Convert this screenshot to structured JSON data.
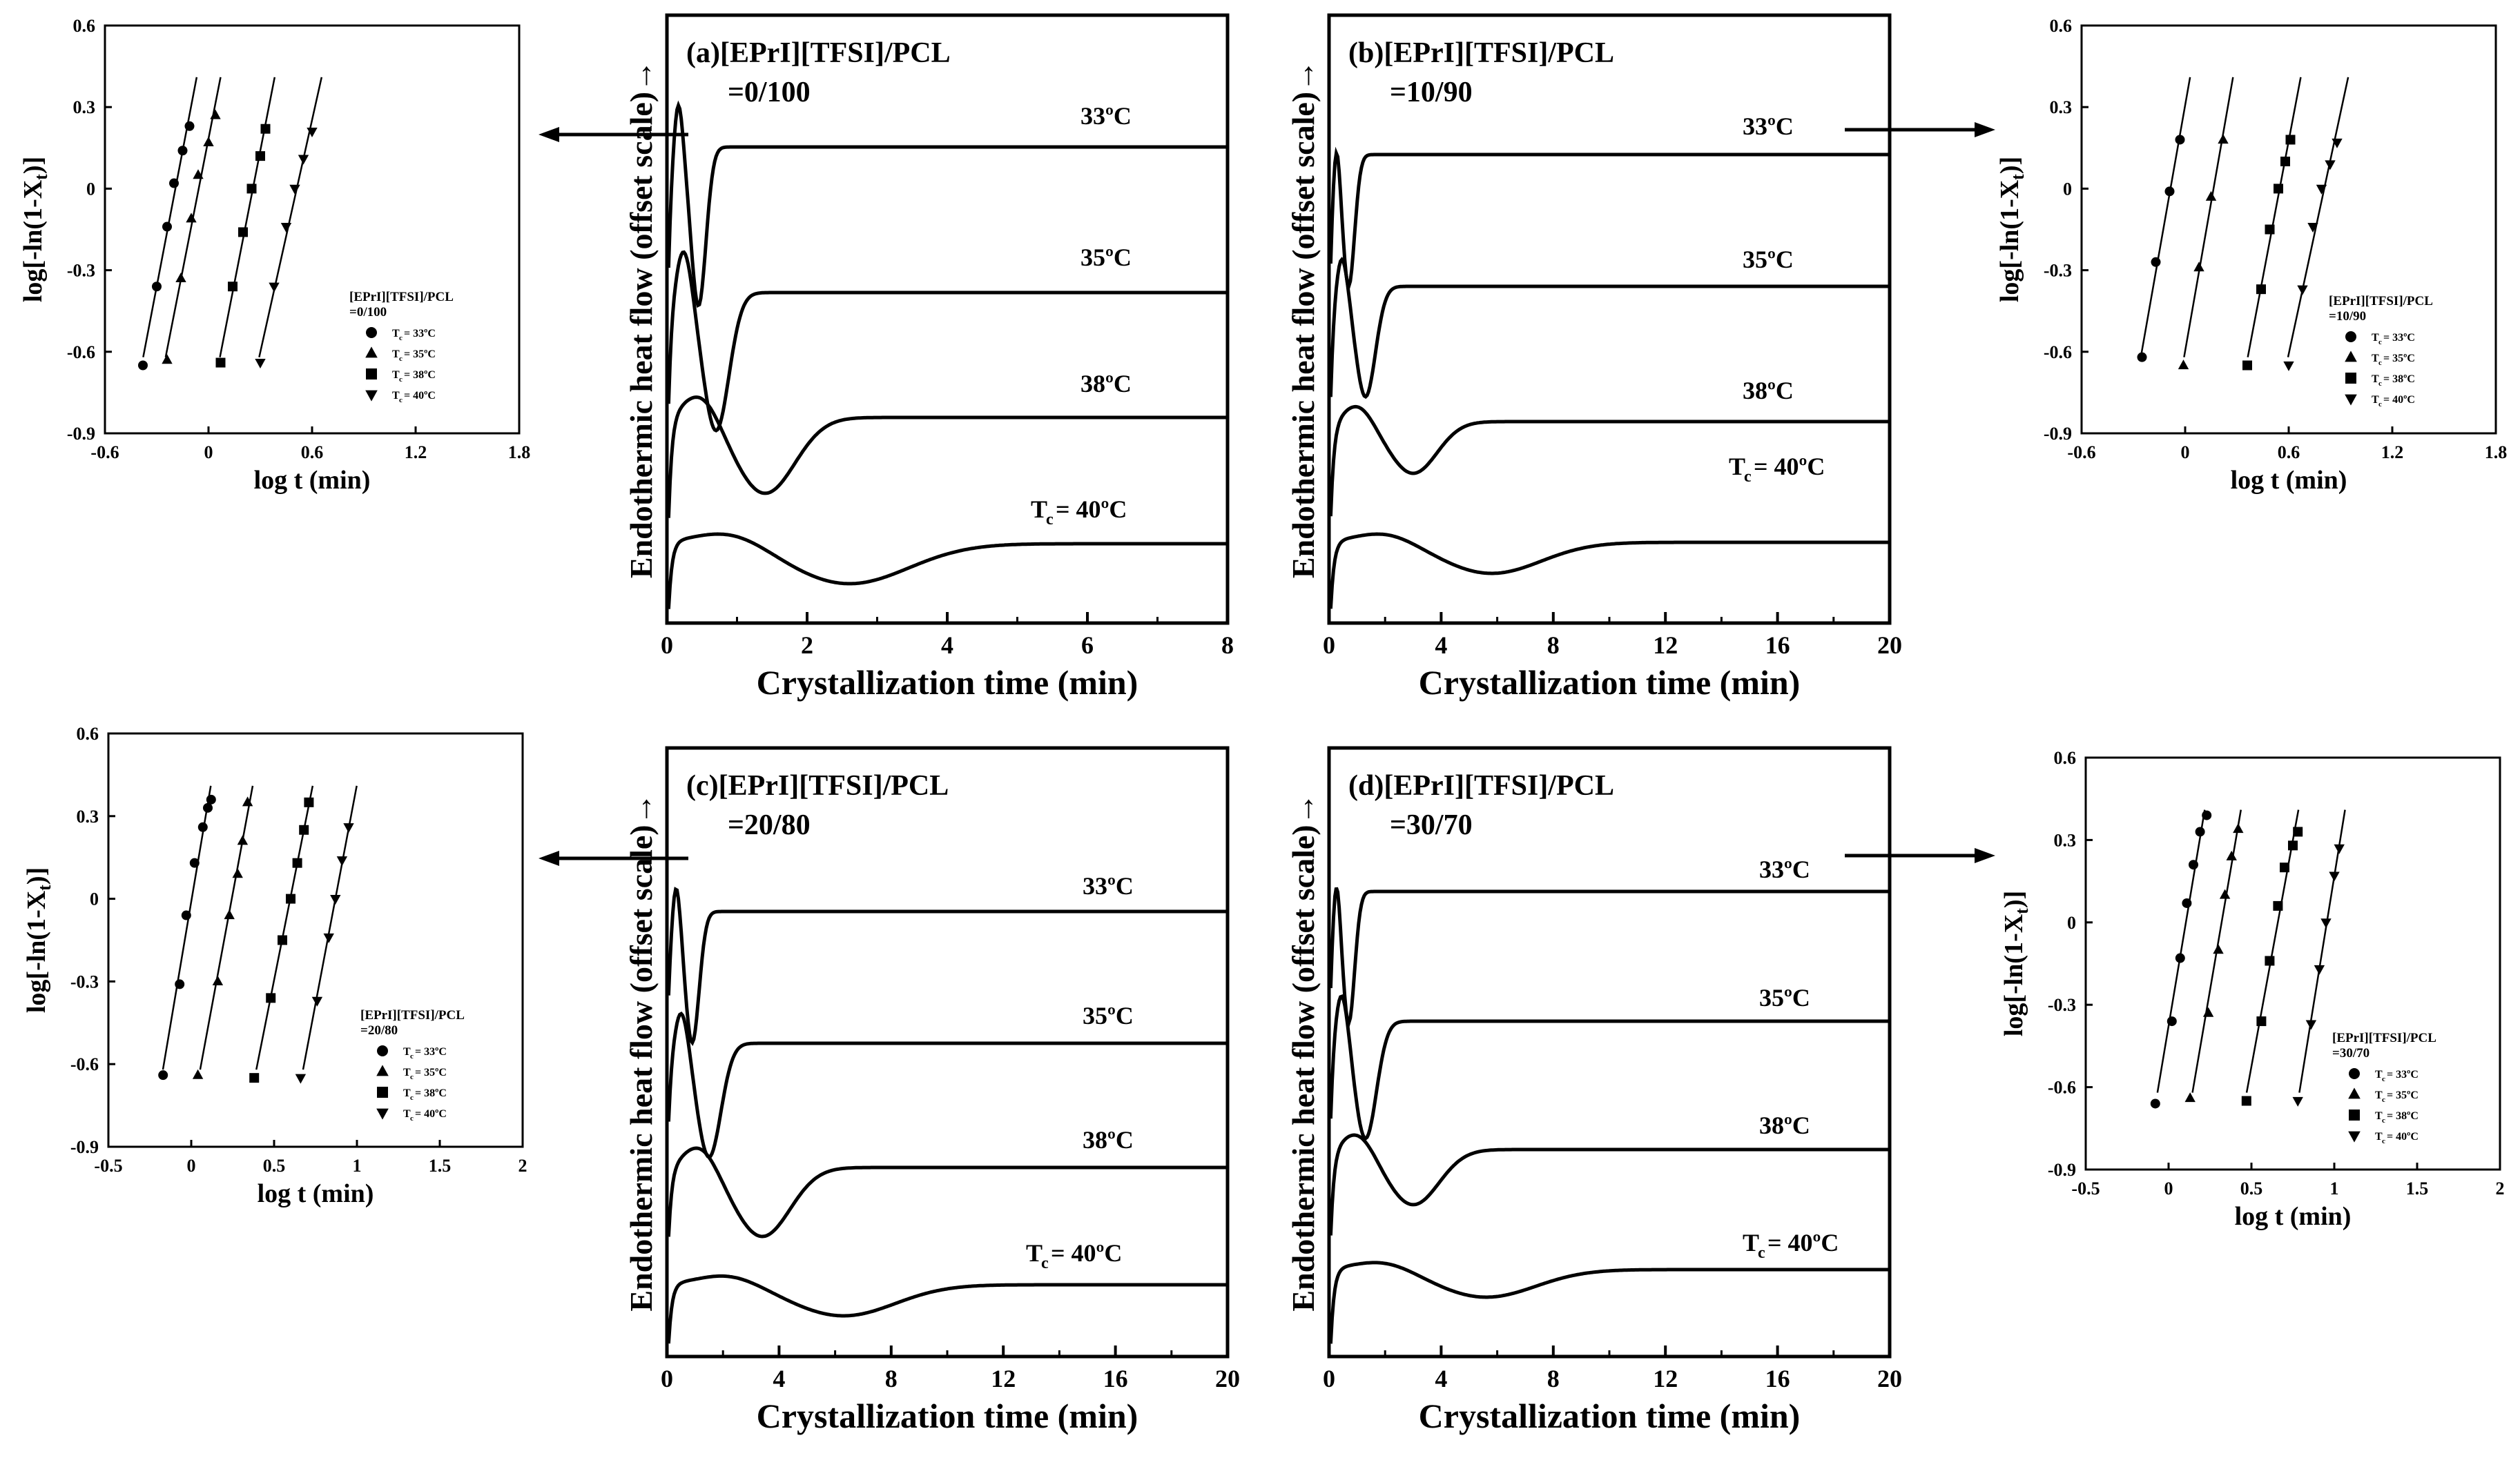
{
  "figure": {
    "panels": {
      "a": {
        "title_line1": "(a)[EPrI][TFSI]/PCL",
        "title_line2": "=0/100",
        "ylabel": "Endothermic heat flow (offset scale)→",
        "xlabel": "Crystallization time (min)"
      },
      "b": {
        "title_line1": "(b)[EPrI][TFSI]/PCL",
        "title_line2": "=10/90",
        "ylabel": "Endothermic heat flow (offset scale)→",
        "xlabel": "Crystallization time (min)"
      },
      "c": {
        "title_line1": "(c)[EPrI][TFSI]/PCL",
        "title_line2": "=20/80",
        "ylabel": "Endothermic heat flow (offset scale)→",
        "xlabel": "Crystallization time (min)"
      },
      "d": {
        "title_line1": "(d)[EPrI][TFSI]/PCL",
        "title_line2": "=30/70",
        "ylabel": "Endothermic heat flow (offset scale)→",
        "xlabel": "Crystallization time (min)"
      }
    },
    "insets": {
      "a": {
        "ylabel": "log[-ln(1-X",
        "ylabel_sub": "t",
        "ylabel_end": ")]",
        "xlabel": "log t (min)",
        "legend_title": "[EPrI][TFSI]/PCL",
        "legend_ratio": "=0/100"
      },
      "b": {
        "ylabel": "log[-ln(1-X",
        "ylabel_sub": "t",
        "ylabel_end": ")]",
        "xlabel": "log t (min)",
        "legend_title": "[EPrI][TFSI]/PCL",
        "legend_ratio": "=10/90"
      },
      "c": {
        "ylabel": "log[-ln(1-X",
        "ylabel_sub": "t",
        "ylabel_end": ")]",
        "xlabel": "log t (min)",
        "legend_title": "[EPrI][TFSI]/PCL",
        "legend_ratio": "=20/80"
      },
      "d": {
        "ylabel": "log[-ln(1-X",
        "ylabel_sub": "t",
        "ylabel_end": ")]",
        "xlabel": "log t (min)",
        "legend_title": "[EPrI][TFSI]/PCL",
        "legend_ratio": "=30/70"
      }
    },
    "tc_labels": [
      "33ºC",
      "35ºC",
      "38ºC",
      "T",
      "c",
      " = 40ºC"
    ],
    "legend_entries": [
      "T",
      "c",
      " = 33ºC",
      " = 35ºC",
      " = 38ºC",
      " = 40ºC"
    ],
    "colors": {
      "line": "#000000",
      "background": "#ffffff"
    }
  },
  "chart_data": [
    {
      "id": "a",
      "type": "line",
      "title": "(a)[EPrI][TFSI]/PCL =0/100",
      "xlabel": "Crystallization time (min)",
      "ylabel": "Endothermic heat flow (offset scale)→",
      "xlim": [
        0,
        8
      ],
      "xticks": [
        0,
        2,
        4,
        6,
        8
      ],
      "series": [
        {
          "name": "33ºC",
          "label": "33ºC",
          "peak_time": 0.45,
          "peak_depth": 0.62,
          "peak_width": 0.15
        },
        {
          "name": "35ºC",
          "label": "35ºC",
          "peak_time": 0.7,
          "peak_depth": 0.55,
          "peak_width": 0.26
        },
        {
          "name": "38ºC",
          "label": "38ºC",
          "peak_time": 1.4,
          "peak_depth": 0.35,
          "peak_width": 0.6
        },
        {
          "name": "40ºC",
          "label": "T_c = 40ºC",
          "peak_time": 2.6,
          "peak_depth": 0.17,
          "peak_width": 1.2
        }
      ]
    },
    {
      "id": "b",
      "type": "line",
      "title": "(b)[EPrI][TFSI]/PCL =10/90",
      "xlabel": "Crystallization time (min)",
      "ylabel": "Endothermic heat flow (offset scale)→",
      "xlim": [
        0,
        20
      ],
      "xticks": [
        0,
        4,
        8,
        12,
        16,
        20
      ],
      "series": [
        {
          "name": "33ºC",
          "label": "33ºC",
          "peak_time": 0.7,
          "peak_depth": 0.6,
          "peak_width": 0.3
        },
        {
          "name": "35ºC",
          "label": "35ºC",
          "peak_time": 1.3,
          "peak_depth": 0.5,
          "peak_width": 0.5
        },
        {
          "name": "38ºC",
          "label": "38ºC",
          "peak_time": 3.0,
          "peak_depth": 0.3,
          "peak_width": 1.2
        },
        {
          "name": "40ºC",
          "label": "T_c = 40ºC",
          "peak_time": 5.8,
          "peak_depth": 0.16,
          "peak_width": 2.5
        }
      ]
    },
    {
      "id": "c",
      "type": "line",
      "title": "(c)[EPrI][TFSI]/PCL =20/80",
      "xlabel": "Crystallization time (min)",
      "ylabel": "Endothermic heat flow (offset scale)→",
      "xlim": [
        0,
        20
      ],
      "xticks": [
        0,
        4,
        8,
        12,
        16,
        20
      ],
      "series": [
        {
          "name": "33ºC",
          "label": "33ºC",
          "peak_time": 0.9,
          "peak_depth": 0.6,
          "peak_width": 0.35
        },
        {
          "name": "35ºC",
          "label": "35ºC",
          "peak_time": 1.5,
          "peak_depth": 0.5,
          "peak_width": 0.6
        },
        {
          "name": "38ºC",
          "label": "38ºC",
          "peak_time": 3.4,
          "peak_depth": 0.3,
          "peak_width": 1.4
        },
        {
          "name": "40ºC",
          "label": "T_c = 40ºC",
          "peak_time": 6.3,
          "peak_depth": 0.16,
          "peak_width": 2.6
        }
      ]
    },
    {
      "id": "d",
      "type": "line",
      "title": "(d)[EPrI][TFSI]/PCL =30/70",
      "xlabel": "Crystallization time (min)",
      "ylabel": "Endothermic heat flow (offset scale)→",
      "xlim": [
        0,
        20
      ],
      "xticks": [
        0,
        4,
        8,
        12,
        16,
        20
      ],
      "series": [
        {
          "name": "33ºC",
          "label": "33ºC",
          "peak_time": 0.7,
          "peak_depth": 0.6,
          "peak_width": 0.3
        },
        {
          "name": "35ºC",
          "label": "35ºC",
          "peak_time": 1.3,
          "peak_depth": 0.5,
          "peak_width": 0.55
        },
        {
          "name": "38ºC",
          "label": "38ºC",
          "peak_time": 3.0,
          "peak_depth": 0.3,
          "peak_width": 1.3
        },
        {
          "name": "40ºC",
          "label": "T_c = 40ºC",
          "peak_time": 5.6,
          "peak_depth": 0.15,
          "peak_width": 2.5
        }
      ]
    },
    {
      "id": "inset-a",
      "type": "scatter",
      "xlabel": "log t (min)",
      "ylabel": "log[-ln(1-X_t)]",
      "xlim": [
        -0.6,
        1.8
      ],
      "ylim": [
        -0.9,
        0.6
      ],
      "xticks": [
        -0.6,
        0,
        0.6,
        1.2,
        1.8
      ],
      "yticks": [
        -0.9,
        -0.6,
        -0.3,
        0,
        0.3,
        0.6
      ],
      "series": [
        {
          "name": "T_c = 33ºC",
          "marker": "circle",
          "x": [
            -0.38,
            -0.3,
            -0.24,
            -0.2,
            -0.15,
            -0.11
          ],
          "y": [
            -0.65,
            -0.36,
            -0.14,
            0.02,
            0.14,
            0.23
          ]
        },
        {
          "name": "T_c = 35ºC",
          "marker": "triangle-up",
          "x": [
            -0.24,
            -0.16,
            -0.1,
            -0.06,
            0.0,
            0.04
          ],
          "y": [
            -0.63,
            -0.33,
            -0.11,
            0.05,
            0.17,
            0.27
          ]
        },
        {
          "name": "T_c = 38ºC",
          "marker": "square",
          "x": [
            0.07,
            0.14,
            0.2,
            0.25,
            0.3,
            0.33
          ],
          "y": [
            -0.64,
            -0.36,
            -0.16,
            0.0,
            0.12,
            0.22
          ]
        },
        {
          "name": "T_c = 40ºC",
          "marker": "triangle-down",
          "x": [
            0.3,
            0.38,
            0.45,
            0.5,
            0.55,
            0.6
          ],
          "y": [
            -0.64,
            -0.36,
            -0.14,
            0.0,
            0.11,
            0.21
          ]
        }
      ]
    },
    {
      "id": "inset-b",
      "type": "scatter",
      "xlabel": "log t (min)",
      "ylabel": "log[-ln(1-X_t)]",
      "xlim": [
        -0.6,
        1.8
      ],
      "ylim": [
        -0.9,
        0.6
      ],
      "xticks": [
        -0.6,
        0,
        0.6,
        1.2,
        1.8
      ],
      "yticks": [
        -0.9,
        -0.6,
        -0.3,
        0,
        0.3,
        0.6
      ],
      "series": [
        {
          "name": "T_c = 33ºC",
          "marker": "circle",
          "x": [
            -0.25,
            -0.17,
            -0.09,
            -0.03
          ],
          "y": [
            -0.62,
            -0.27,
            -0.01,
            0.18
          ]
        },
        {
          "name": "T_c = 35ºC",
          "marker": "triangle-up",
          "x": [
            -0.01,
            0.08,
            0.15,
            0.22
          ],
          "y": [
            -0.65,
            -0.29,
            -0.03,
            0.18
          ]
        },
        {
          "name": "T_c = 38ºC",
          "marker": "square",
          "x": [
            0.36,
            0.44,
            0.49,
            0.54,
            0.58,
            0.61
          ],
          "y": [
            -0.65,
            -0.37,
            -0.15,
            0.0,
            0.1,
            0.18
          ]
        },
        {
          "name": "T_c = 40ºC",
          "marker": "triangle-down",
          "x": [
            0.6,
            0.68,
            0.74,
            0.79,
            0.84,
            0.88
          ],
          "y": [
            -0.65,
            -0.37,
            -0.14,
            0.0,
            0.09,
            0.17
          ]
        }
      ]
    },
    {
      "id": "inset-c",
      "type": "scatter",
      "xlabel": "log t (min)",
      "ylabel": "log[-ln(1-X_t)]",
      "xlim": [
        -0.5,
        2
      ],
      "ylim": [
        -0.9,
        0.6
      ],
      "xticks": [
        -0.5,
        0,
        0.5,
        1,
        1.5,
        2
      ],
      "yticks": [
        -0.9,
        -0.6,
        -0.3,
        0,
        0.3,
        0.6
      ],
      "series": [
        {
          "name": "T_c = 33ºC",
          "marker": "circle",
          "x": [
            -0.17,
            -0.07,
            -0.03,
            0.02,
            0.07,
            0.1,
            0.12
          ],
          "y": [
            -0.64,
            -0.31,
            -0.06,
            0.13,
            0.26,
            0.33,
            0.36
          ]
        },
        {
          "name": "T_c = 35ºC",
          "marker": "triangle-up",
          "x": [
            0.04,
            0.16,
            0.23,
            0.28,
            0.31,
            0.34
          ],
          "y": [
            -0.64,
            -0.3,
            -0.06,
            0.09,
            0.21,
            0.35
          ]
        },
        {
          "name": "T_c = 38ºC",
          "marker": "square",
          "x": [
            0.38,
            0.48,
            0.55,
            0.6,
            0.64,
            0.68,
            0.71
          ],
          "y": [
            -0.65,
            -0.36,
            -0.15,
            0.0,
            0.13,
            0.25,
            0.35
          ]
        },
        {
          "name": "T_c = 40ºC",
          "marker": "triangle-down",
          "x": [
            0.66,
            0.76,
            0.83,
            0.87,
            0.91,
            0.95
          ],
          "y": [
            -0.65,
            -0.37,
            -0.14,
            0.0,
            0.14,
            0.26
          ]
        }
      ]
    },
    {
      "id": "inset-d",
      "type": "scatter",
      "xlabel": "log t (min)",
      "ylabel": "log[-ln(1-X_t)]",
      "xlim": [
        -0.5,
        2
      ],
      "ylim": [
        -0.9,
        0.6
      ],
      "xticks": [
        -0.5,
        0,
        0.5,
        1,
        1.5,
        2
      ],
      "yticks": [
        -0.9,
        -0.6,
        -0.3,
        0,
        0.3,
        0.6
      ],
      "series": [
        {
          "name": "T_c = 33ºC",
          "marker": "circle",
          "x": [
            -0.08,
            0.02,
            0.07,
            0.11,
            0.15,
            0.19,
            0.23
          ],
          "y": [
            -0.66,
            -0.36,
            -0.13,
            0.07,
            0.21,
            0.33,
            0.39
          ]
        },
        {
          "name": "T_c = 35ºC",
          "marker": "triangle-up",
          "x": [
            0.13,
            0.24,
            0.3,
            0.34,
            0.38,
            0.42
          ],
          "y": [
            -0.64,
            -0.33,
            -0.1,
            0.1,
            0.24,
            0.34
          ]
        },
        {
          "name": "T_c = 38ºC",
          "marker": "square",
          "x": [
            0.47,
            0.56,
            0.61,
            0.66,
            0.7,
            0.75,
            0.78
          ],
          "y": [
            -0.65,
            -0.36,
            -0.14,
            0.06,
            0.2,
            0.28,
            0.33
          ]
        },
        {
          "name": "T_c = 40ºC",
          "marker": "triangle-down",
          "x": [
            0.78,
            0.86,
            0.91,
            0.95,
            1.0,
            1.03
          ],
          "y": [
            -0.65,
            -0.37,
            -0.17,
            0.0,
            0.17,
            0.27
          ]
        }
      ]
    }
  ]
}
